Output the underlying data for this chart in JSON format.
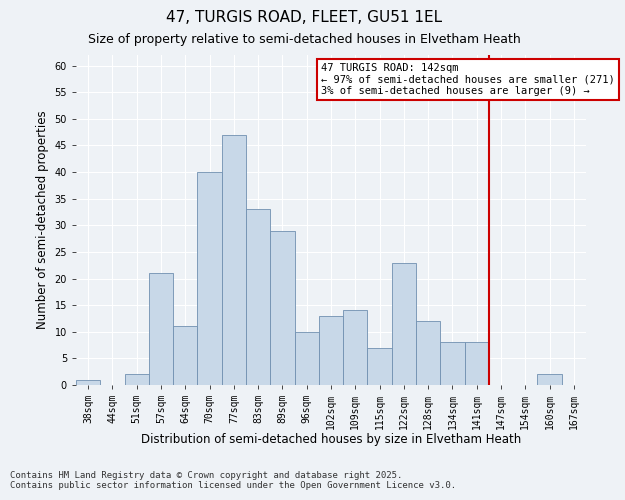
{
  "title": "47, TURGIS ROAD, FLEET, GU51 1EL",
  "subtitle": "Size of property relative to semi-detached houses in Elvetham Heath",
  "xlabel": "Distribution of semi-detached houses by size in Elvetham Heath",
  "ylabel": "Number of semi-detached properties",
  "categories": [
    "38sqm",
    "44sqm",
    "51sqm",
    "57sqm",
    "64sqm",
    "70sqm",
    "77sqm",
    "83sqm",
    "89sqm",
    "96sqm",
    "102sqm",
    "109sqm",
    "115sqm",
    "122sqm",
    "128sqm",
    "134sqm",
    "141sqm",
    "147sqm",
    "154sqm",
    "160sqm",
    "167sqm"
  ],
  "values": [
    1,
    0,
    2,
    21,
    11,
    40,
    47,
    33,
    29,
    10,
    13,
    14,
    7,
    23,
    12,
    8,
    8,
    0,
    0,
    2,
    0
  ],
  "bar_color": "#c8d8e8",
  "bar_edge_color": "#7090b0",
  "highlight_line_index": 16,
  "annotation_text": "47 TURGIS ROAD: 142sqm\n← 97% of semi-detached houses are smaller (271)\n3% of semi-detached houses are larger (9) →",
  "annotation_box_color": "#ffffff",
  "annotation_box_edge_color": "#cc0000",
  "annotation_text_color": "#000000",
  "red_line_color": "#cc0000",
  "ylim": [
    0,
    62
  ],
  "yticks": [
    0,
    5,
    10,
    15,
    20,
    25,
    30,
    35,
    40,
    45,
    50,
    55,
    60
  ],
  "background_color": "#eef2f6",
  "grid_color": "#ffffff",
  "footer_line1": "Contains HM Land Registry data © Crown copyright and database right 2025.",
  "footer_line2": "Contains public sector information licensed under the Open Government Licence v3.0.",
  "title_fontsize": 11,
  "subtitle_fontsize": 9,
  "xlabel_fontsize": 8.5,
  "ylabel_fontsize": 8.5,
  "tick_fontsize": 7,
  "footer_fontsize": 6.5,
  "annotation_fontsize": 7.5
}
